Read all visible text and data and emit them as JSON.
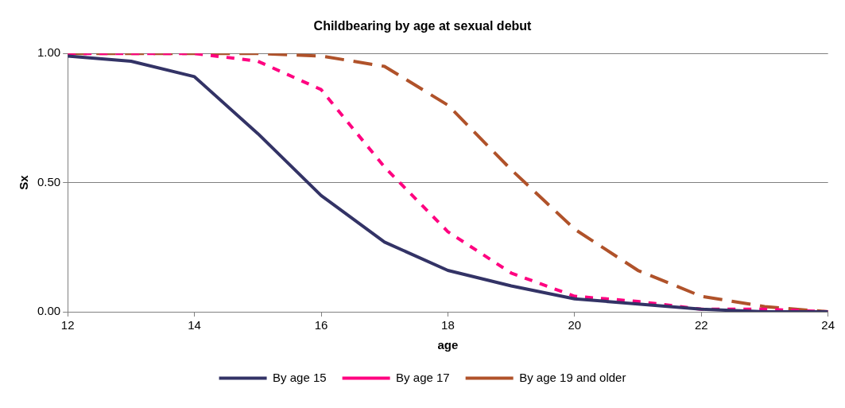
{
  "chart_data": {
    "type": "line",
    "title": "Childbearing by age at sexual debut",
    "xlabel": "age",
    "ylabel": "Sx",
    "x": [
      12,
      13,
      14,
      15,
      16,
      17,
      18,
      19,
      20,
      21,
      22,
      23,
      24
    ],
    "series": [
      {
        "name": "By age 15",
        "color": "#333366",
        "line_style": "solid",
        "values": [
          0.99,
          0.97,
          0.91,
          0.69,
          0.45,
          0.27,
          0.16,
          0.1,
          0.05,
          0.03,
          0.01,
          0,
          0
        ]
      },
      {
        "name": "By age 17",
        "color": "#ff0080",
        "line_style": "dotted",
        "values": [
          1,
          1,
          1,
          0.97,
          0.86,
          0.56,
          0.31,
          0.15,
          0.06,
          0.04,
          0.01,
          0.01,
          0
        ]
      },
      {
        "name": "By age 19 and older",
        "color": "#b0522a",
        "line_style": "dashed",
        "values": [
          1,
          1,
          1,
          1,
          0.99,
          0.95,
          0.8,
          0.55,
          0.32,
          0.16,
          0.06,
          0.02,
          0
        ]
      }
    ],
    "xlim": [
      12,
      24
    ],
    "xticks": [
      12,
      14,
      16,
      18,
      20,
      22,
      24
    ],
    "ylim": [
      0,
      1
    ],
    "yticks": [
      {
        "value": 0,
        "label": "0.00"
      },
      {
        "value": 0.5,
        "label": "0.50"
      },
      {
        "value": 1,
        "label": "1.00"
      }
    ],
    "grid": "y",
    "legend": "bottom",
    "marker": "none"
  }
}
